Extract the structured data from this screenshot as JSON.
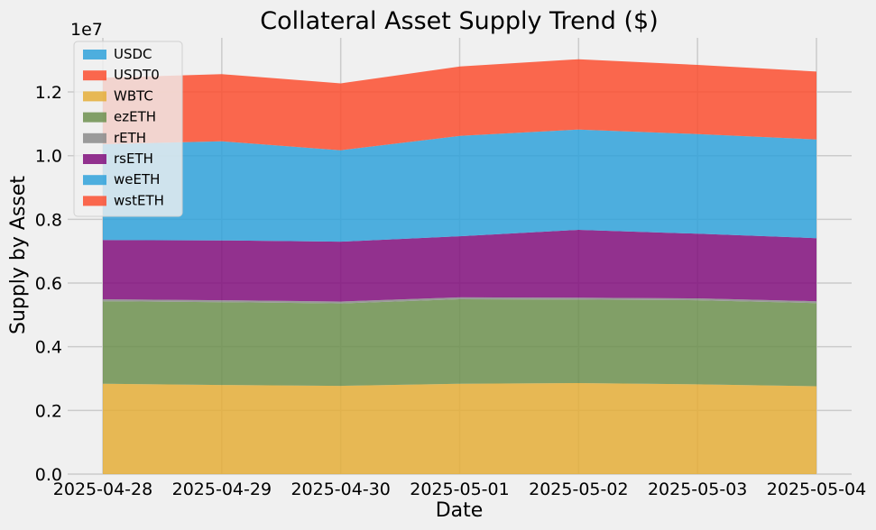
{
  "chart_data": {
    "type": "area",
    "stacked": true,
    "title": "Collateral Asset Supply Trend ($)",
    "xlabel": "Date",
    "ylabel": "Supply by Asset",
    "y_offset_label": "1e7",
    "x": [
      "2025-04-28",
      "2025-04-29",
      "2025-04-30",
      "2025-05-01",
      "2025-05-02",
      "2025-05-03",
      "2025-05-04"
    ],
    "ylim": [
      0,
      13700000
    ],
    "yticks": [
      0,
      2000000,
      4000000,
      6000000,
      8000000,
      10000000,
      12000000
    ],
    "ytick_labels": [
      "0.0",
      "0.2",
      "0.4",
      "0.6",
      "0.8",
      "1.0",
      "1.2"
    ],
    "grid": true,
    "legend_position": "upper left",
    "series": [
      {
        "name": "USDC",
        "color": "#30a2da",
        "values": [
          0,
          0,
          0,
          0,
          0,
          0,
          0
        ]
      },
      {
        "name": "USDT0",
        "color": "#fc4f30",
        "values": [
          0,
          0,
          0,
          0,
          0,
          0,
          0
        ]
      },
      {
        "name": "WBTC",
        "color": "#e5ae38",
        "values": [
          2840000,
          2800000,
          2770000,
          2840000,
          2860000,
          2820000,
          2760000
        ]
      },
      {
        "name": "ezETH",
        "color": "#6d904f",
        "values": [
          2590000,
          2600000,
          2590000,
          2650000,
          2620000,
          2640000,
          2610000
        ]
      },
      {
        "name": "rETH",
        "color": "#8b8b8b",
        "values": [
          60000,
          60000,
          60000,
          60000,
          60000,
          60000,
          60000
        ]
      },
      {
        "name": "rsETH",
        "color": "#810f7c",
        "values": [
          1860000,
          1880000,
          1880000,
          1920000,
          2130000,
          2030000,
          1980000
        ]
      },
      {
        "name": "weETH",
        "color": "#30a2da",
        "values": [
          3010000,
          3110000,
          2870000,
          3150000,
          3150000,
          3130000,
          3100000
        ]
      },
      {
        "name": "wstETH",
        "color": "#fc4f30",
        "values": [
          2090000,
          2110000,
          2100000,
          2180000,
          2210000,
          2170000,
          2130000
        ]
      }
    ]
  }
}
